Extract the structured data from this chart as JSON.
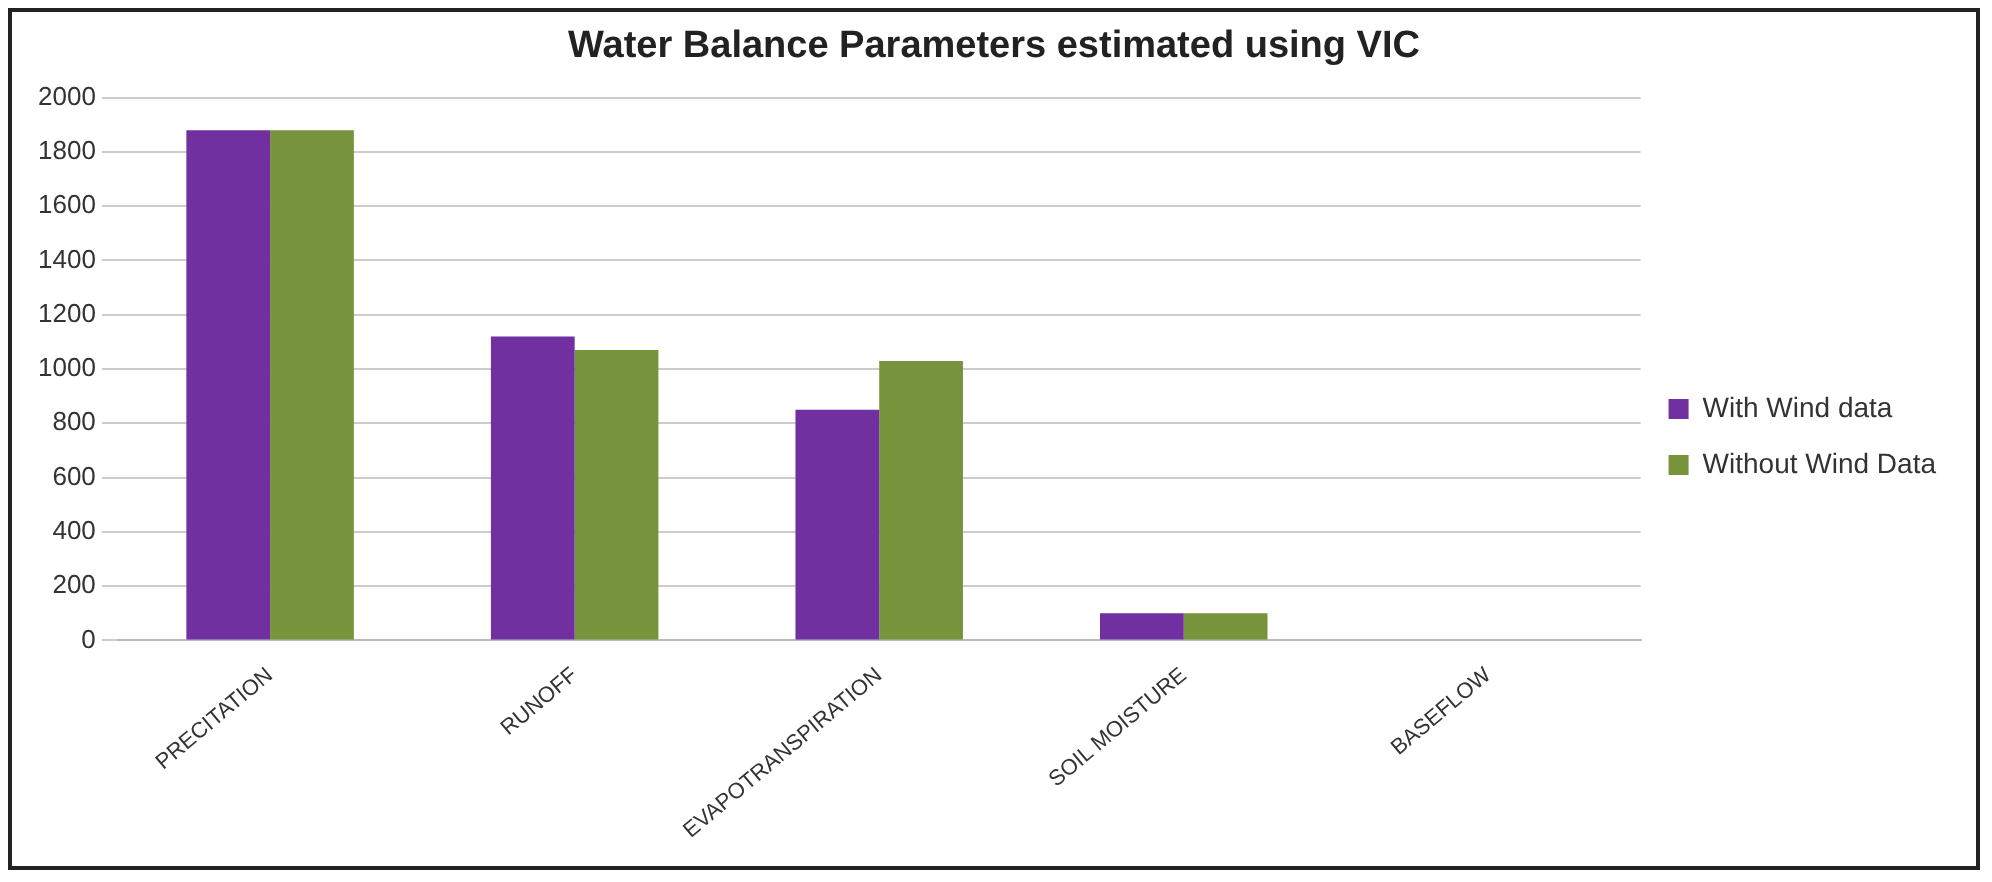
{
  "chart_data": {
    "type": "bar",
    "title": "Water Balance Parameters estimated using VIC",
    "categories": [
      "PRECITATION",
      "RUNOFF",
      "EVAPOTRANSPIRATION",
      "SOIL MOISTURE",
      "BASEFLOW"
    ],
    "series": [
      {
        "name": "With Wind data",
        "color": "#7030a0",
        "values": [
          1880,
          1120,
          850,
          100,
          0
        ]
      },
      {
        "name": "Without Wind Data",
        "color": "#77933c",
        "values": [
          1880,
          1070,
          1030,
          100,
          0
        ]
      }
    ],
    "ylim": [
      0,
      2000
    ],
    "yticks": [
      0,
      200,
      400,
      600,
      800,
      1000,
      1200,
      1400,
      1600,
      1800,
      2000
    ],
    "grid": "y",
    "legend": "right"
  }
}
